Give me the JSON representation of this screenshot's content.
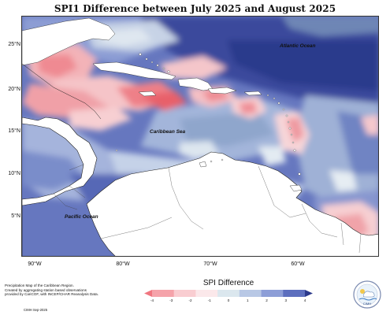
{
  "title": "SPI1 Difference between July 2025 and August 2025",
  "lat_labels": [
    "25°N",
    "20°N",
    "15°N",
    "10°N",
    "5°N"
  ],
  "lon_labels": [
    "90°W",
    "80°W",
    "70°W",
    "60°W"
  ],
  "regions": {
    "atlantic": "Atlantic Ocean",
    "caribbean": "Caribbean Sea",
    "pacific": "Pacific Ocean"
  },
  "credits": {
    "line1": "Precipitation Map of the Caribbean Region.",
    "line2": "Created by aggregating station based observations",
    "line3": "provided by CariCOF, with INCEP/CHAR Reanalysis Data.",
    "sub": "CIMH Sep-2025"
  },
  "legend": {
    "title": "SPI Difference",
    "ticks": [
      "-4",
      "-3",
      "-2",
      "-1",
      "0",
      "1",
      "2",
      "3",
      "4"
    ],
    "colors": [
      "#f07680",
      "#f5a3aa",
      "#f9cdd1",
      "#fbe8ea",
      "#dbe7ee",
      "#b8c8e5",
      "#8d9ed7",
      "#5d6fbe",
      "#2c3a8c"
    ]
  },
  "logo": {
    "text": "CIMH"
  }
}
